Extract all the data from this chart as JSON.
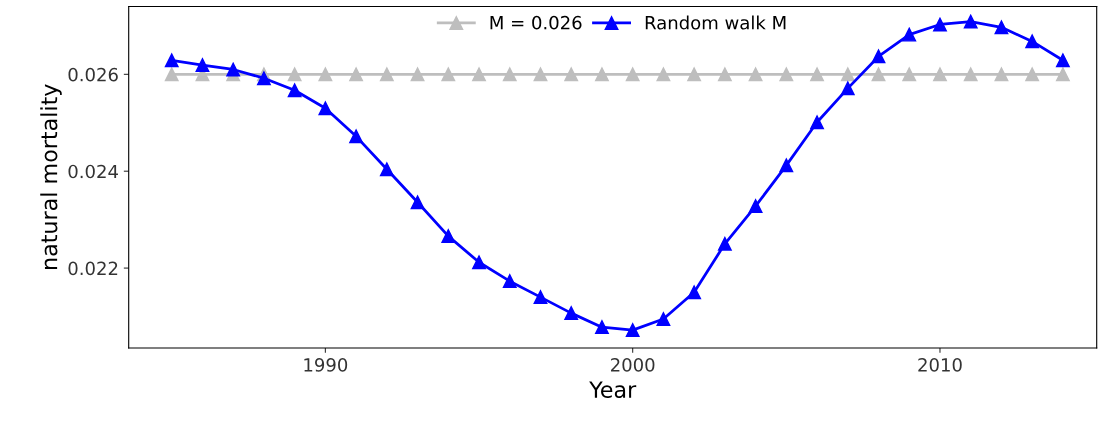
{
  "chart_data": {
    "type": "line",
    "xlabel": "Year",
    "ylabel": "natural mortality",
    "x": [
      1985,
      1986,
      1987,
      1988,
      1989,
      1990,
      1991,
      1992,
      1993,
      1994,
      1995,
      1996,
      1997,
      1998,
      1999,
      2000,
      2001,
      2002,
      2003,
      2004,
      2005,
      2006,
      2007,
      2008,
      2009,
      2010,
      2011,
      2012,
      2013,
      2014
    ],
    "series": [
      {
        "name": "M = 0.026",
        "color": "#bebebe",
        "values": [
          0.026,
          0.026,
          0.026,
          0.026,
          0.026,
          0.026,
          0.026,
          0.026,
          0.026,
          0.026,
          0.026,
          0.026,
          0.026,
          0.026,
          0.026,
          0.026,
          0.026,
          0.026,
          0.026,
          0.026,
          0.026,
          0.026,
          0.026,
          0.026,
          0.026,
          0.026,
          0.026,
          0.026,
          0.026,
          0.026
        ]
      },
      {
        "name": "Random walk M",
        "color": "#0000ff",
        "values": [
          0.02629,
          0.02619,
          0.0261,
          0.02592,
          0.02567,
          0.0253,
          0.02472,
          0.02404,
          0.02336,
          0.02266,
          0.02212,
          0.02173,
          0.0214,
          0.02107,
          0.02078,
          0.02072,
          0.02095,
          0.0215,
          0.0225,
          0.02328,
          0.02412,
          0.02501,
          0.02571,
          0.02637,
          0.02682,
          0.02703,
          0.02709,
          0.02697,
          0.02668,
          0.02629
        ]
      }
    ],
    "xlim": [
      1983.6,
      2015.1
    ],
    "xticks": [
      1990,
      2000,
      2010
    ],
    "ylim": [
      0.02035,
      0.0274
    ],
    "yticks": [
      0.022,
      0.024,
      0.026
    ],
    "legend": "top",
    "marker": "triangle",
    "line_style": "solid",
    "grid": false
  }
}
